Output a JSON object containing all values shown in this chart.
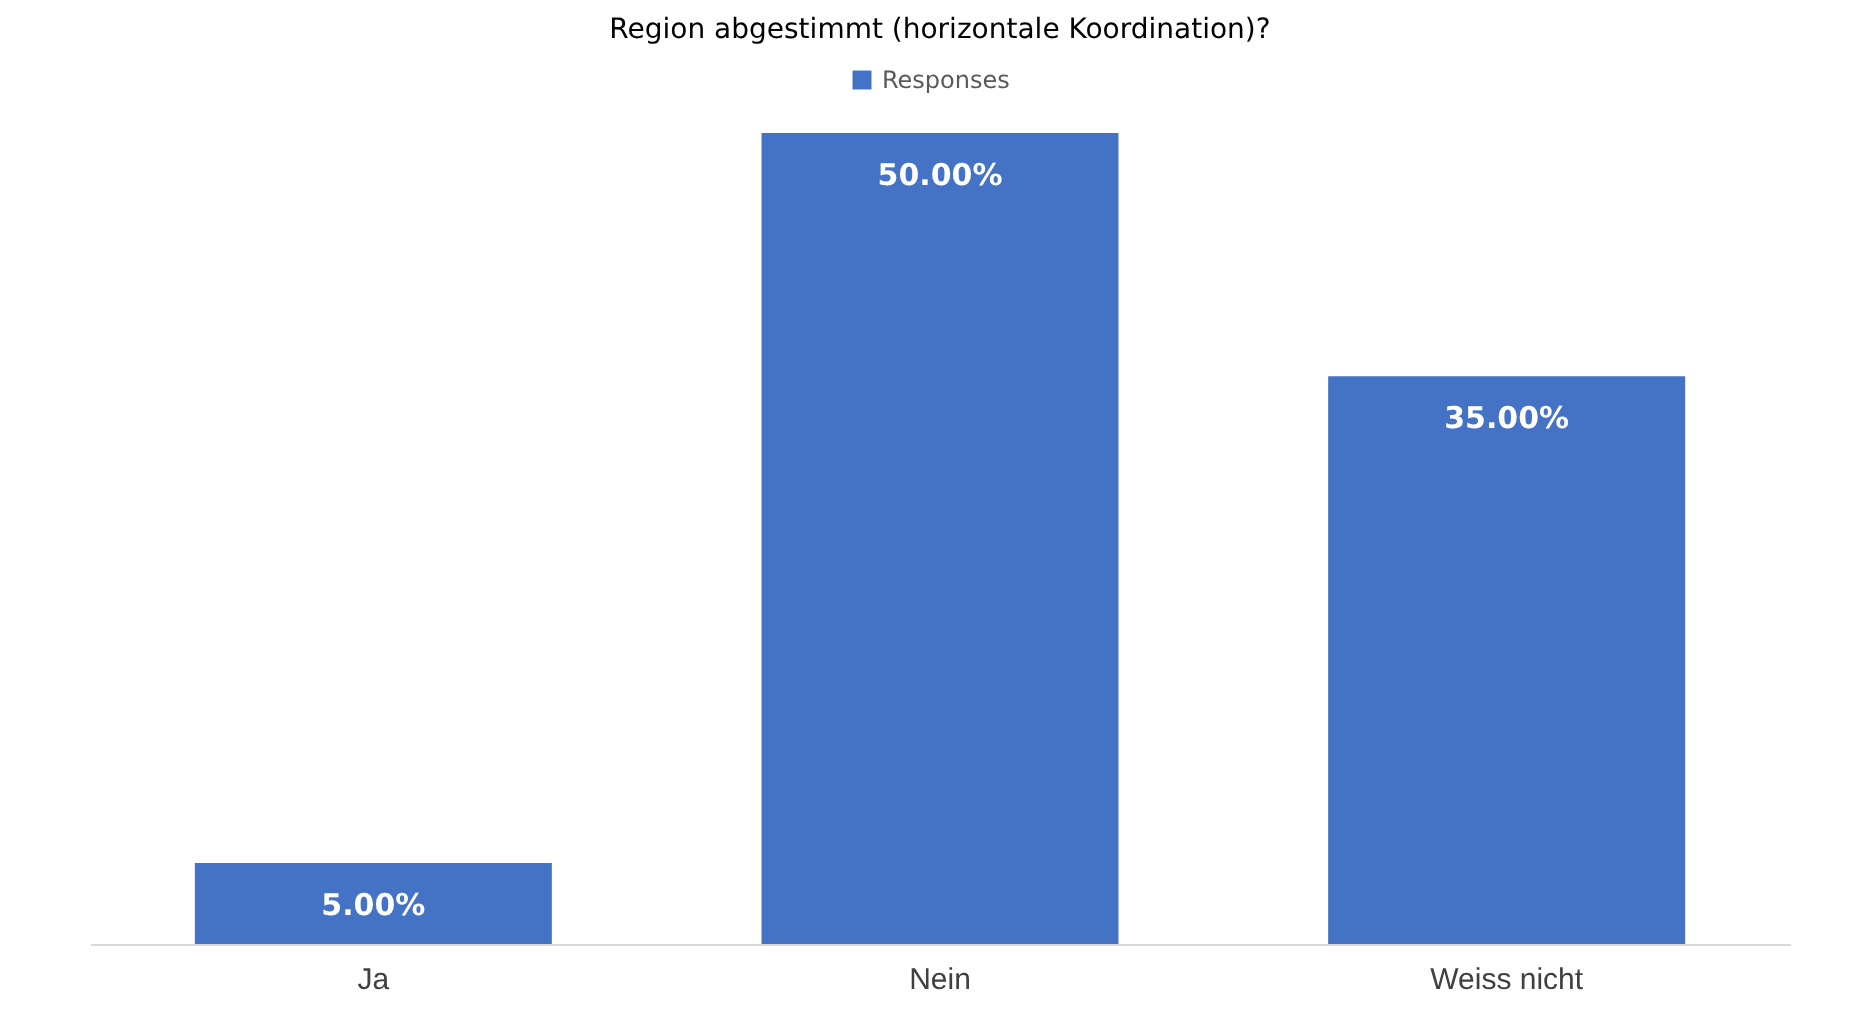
{
  "chart_data": {
    "type": "bar",
    "title": "Region abgestimmt (horizontale Koordination)?",
    "categories": [
      "Ja",
      "Nein",
      "Weiss nicht"
    ],
    "series": [
      {
        "name": "Responses",
        "color": "#4472c4",
        "values": [
          5,
          50,
          35
        ],
        "value_labels": [
          "5.00%",
          "50.00%",
          "35.00%"
        ]
      }
    ],
    "legend": "top",
    "grid": false
  }
}
